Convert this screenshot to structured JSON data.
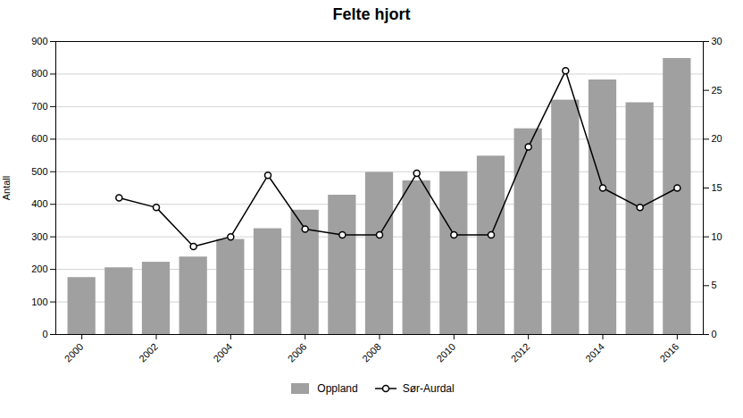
{
  "chart_data": {
    "type": "bar",
    "title": "Felte hjort",
    "x": [
      2000,
      2001,
      2002,
      2003,
      2004,
      2005,
      2006,
      2007,
      2008,
      2009,
      2010,
      2011,
      2012,
      2013,
      2014,
      2015,
      2016
    ],
    "xlim": [
      1999.3,
      2016.7
    ],
    "xticks": [
      2000,
      2002,
      2004,
      2006,
      2008,
      2010,
      2012,
      2014,
      2016
    ],
    "ylabel": "Antall",
    "ylim": [
      0,
      900
    ],
    "yticks": [
      0,
      100,
      200,
      300,
      400,
      500,
      600,
      700,
      800,
      900
    ],
    "y2lim": [
      0,
      30
    ],
    "y2ticks": [
      0,
      5,
      10,
      15,
      20,
      25,
      30
    ],
    "grid": true,
    "legend": "bottom",
    "series": [
      {
        "name": "Oppland",
        "type": "bar",
        "color": "#a0a0a0",
        "values": [
          175,
          205,
          222,
          238,
          292,
          325,
          382,
          428,
          498,
          472,
          500,
          548,
          632,
          720,
          782,
          712,
          848
        ]
      },
      {
        "name": "Sør-Aurdal",
        "type": "line",
        "axis": "y2",
        "color": "#000000",
        "marker": "circle",
        "values": [
          null,
          14,
          13,
          9,
          10,
          16.3,
          10.8,
          10.2,
          10.2,
          16.5,
          10.2,
          10.2,
          19.2,
          27,
          15,
          13,
          15
        ]
      }
    ]
  }
}
